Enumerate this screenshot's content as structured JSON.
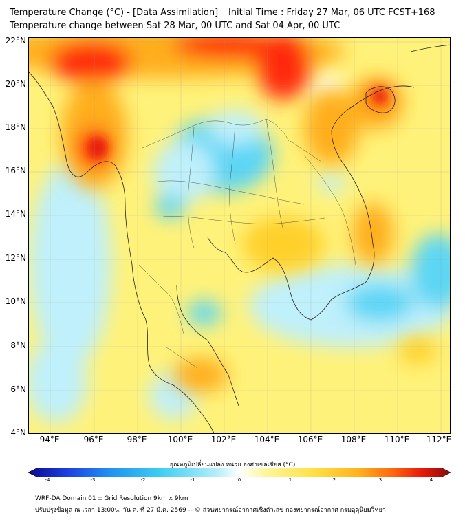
{
  "header": {
    "title_line1": "Temperature Change (°C) - [Data Assimilation] _ Initial Time : Friday 27 Mar, 06 UTC FCST+168",
    "title_line2": "Temperature change between Sat 28 Mar, 00 UTC and Sat 04 Apr, 00 UTC"
  },
  "map": {
    "lat_labels": [
      "22°N",
      "20°N",
      "18°N",
      "16°N",
      "14°N",
      "12°N",
      "10°N",
      "8°N",
      "6°N",
      "4°N"
    ],
    "lon_labels": [
      "94°E",
      "96°E",
      "98°E",
      "100°E",
      "102°E",
      "104°E",
      "106°E",
      "108°E",
      "110°E",
      "112°E"
    ],
    "colors": {
      "base": "#fff27a",
      "warm_orange": "#ffae1a",
      "hot_red": "#ff2a0a",
      "mild_orange": "#ffd02a",
      "cool_cyan": "#5bd6f5",
      "pale_cyan": "#bff0fb",
      "near_zero": "#fbfde8"
    }
  },
  "colorbar": {
    "label": "อุณหภูมิเปลี่ยนแปลง หน่วย องศาเซลเซียส (°C)",
    "ticks": [
      "-4",
      "-3",
      "-2",
      "-1",
      "0",
      "1",
      "2",
      "3",
      "4"
    ],
    "stops": [
      "#0a0a8c",
      "#1b3de0",
      "#1f8ff0",
      "#3ccdf2",
      "#b8effa",
      "#ffffff",
      "#fff6a0",
      "#ffe24a",
      "#ffb41c",
      "#ff6a0e",
      "#ea1b0a",
      "#8a0a0a"
    ]
  },
  "footer": {
    "line1": "WRF-DA Domain 01 :: Grid Resolution 9km x 9km",
    "line2": "ปรับปรุงข้อมูล ณ เวลา 13:00น. วัน ศ. ที่ 27 มี.ค. 2569 -- © ส่วนพยากรณ์อากาศเชิงตัวเลข กองพยากรณ์อากาศ กรมอุตุนิยมวิทยา"
  }
}
